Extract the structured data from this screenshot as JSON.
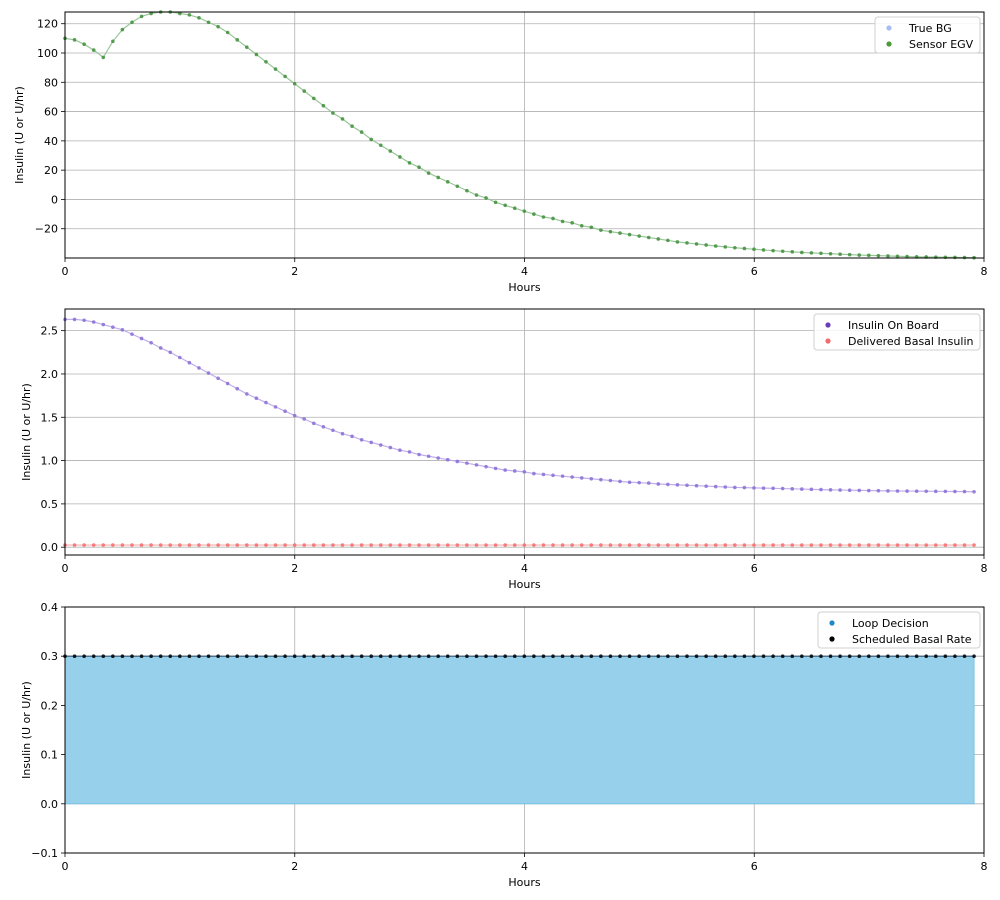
{
  "chart_data": [
    {
      "type": "scatter",
      "xlabel": "Hours",
      "ylabel": "Insulin (U or U/hr)",
      "xlim": [
        0,
        8
      ],
      "ylim": [
        -40,
        128
      ],
      "xticks": [
        0,
        2,
        4,
        6,
        8
      ],
      "yticks": [
        -20,
        0,
        20,
        40,
        60,
        80,
        100,
        120
      ],
      "grid": true,
      "legend_position": "top-right",
      "legend": [
        {
          "label": "True BG",
          "color": "#a6bff0"
        },
        {
          "label": "Sensor EGV",
          "color": "#4c9a3a"
        }
      ],
      "x_step": 0.0833,
      "series": [
        {
          "name": "Sensor EGV",
          "color": "#3f8f3a",
          "line_color": "#8fbf8f",
          "values": [
            110,
            109,
            106,
            102,
            97,
            108,
            116,
            121,
            125,
            127,
            128,
            128,
            127,
            126,
            124,
            121,
            118,
            114,
            109,
            104,
            99,
            94,
            89,
            84,
            79,
            74,
            69,
            64,
            59,
            55,
            50,
            46,
            41,
            37,
            33,
            29,
            25,
            22,
            18,
            15,
            12,
            9,
            6,
            3,
            1,
            -2,
            -4,
            -6,
            -8,
            -10,
            -12,
            -13,
            -15,
            -16,
            -18,
            -19,
            -21,
            -22,
            -23,
            -24,
            -25,
            -26,
            -27,
            -28,
            -29,
            -29.7,
            -30.4,
            -31.1,
            -31.8,
            -32.4,
            -33,
            -33.5,
            -34,
            -34.5,
            -35,
            -35.4,
            -35.8,
            -36.2,
            -36.5,
            -36.8,
            -37.1,
            -37.4,
            -37.7,
            -38,
            -38.2,
            -38.4,
            -38.6,
            -38.8,
            -39,
            -39.2,
            -39.3,
            -39.4,
            -39.5,
            -39.6,
            -39.7,
            -39.8
          ]
        }
      ]
    },
    {
      "type": "scatter",
      "xlabel": "Hours",
      "ylabel": "Insulin (U or U/hr)",
      "xlim": [
        0,
        8
      ],
      "ylim": [
        -0.09,
        2.75
      ],
      "xticks": [
        0,
        2,
        4,
        6,
        8
      ],
      "yticks": [
        0.0,
        0.5,
        1.0,
        1.5,
        2.0,
        2.5
      ],
      "grid": true,
      "legend_position": "top-right",
      "legend": [
        {
          "label": "Insulin On Board",
          "color": "#6a3fb5"
        },
        {
          "label": "Delivered Basal Insulin",
          "color": "#f46b6b"
        }
      ],
      "x_step": 0.0833,
      "series": [
        {
          "name": "Insulin On Board",
          "color": "#8a6fd6",
          "line_color": "#b9a6e8",
          "values": [
            2.63,
            2.63,
            2.62,
            2.6,
            2.57,
            2.54,
            2.51,
            2.46,
            2.41,
            2.36,
            2.3,
            2.25,
            2.19,
            2.13,
            2.07,
            2.01,
            1.95,
            1.89,
            1.83,
            1.77,
            1.72,
            1.67,
            1.62,
            1.57,
            1.52,
            1.48,
            1.43,
            1.39,
            1.35,
            1.31,
            1.28,
            1.24,
            1.21,
            1.18,
            1.15,
            1.12,
            1.1,
            1.07,
            1.05,
            1.03,
            1.01,
            0.99,
            0.97,
            0.95,
            0.93,
            0.91,
            0.89,
            0.88,
            0.87,
            0.85,
            0.84,
            0.83,
            0.82,
            0.81,
            0.8,
            0.79,
            0.78,
            0.77,
            0.76,
            0.75,
            0.745,
            0.74,
            0.73,
            0.725,
            0.72,
            0.715,
            0.71,
            0.705,
            0.7,
            0.695,
            0.69,
            0.688,
            0.685,
            0.682,
            0.68,
            0.677,
            0.674,
            0.671,
            0.668,
            0.665,
            0.662,
            0.66,
            0.658,
            0.656,
            0.654,
            0.652,
            0.65,
            0.649,
            0.648,
            0.647,
            0.646,
            0.645,
            0.644,
            0.643,
            0.642,
            0.64
          ]
        },
        {
          "name": "Delivered Basal Insulin",
          "color": "#f46b6b",
          "line_color": "#f8a4a4",
          "values": [
            0.025,
            0.025,
            0.025,
            0.025,
            0.025,
            0.025,
            0.025,
            0.025,
            0.025,
            0.025,
            0.025,
            0.025,
            0.025,
            0.025,
            0.025,
            0.025,
            0.025,
            0.025,
            0.025,
            0.025,
            0.025,
            0.025,
            0.025,
            0.025,
            0.025,
            0.025,
            0.025,
            0.025,
            0.025,
            0.025,
            0.025,
            0.025,
            0.025,
            0.025,
            0.025,
            0.025,
            0.025,
            0.025,
            0.025,
            0.025,
            0.025,
            0.025,
            0.025,
            0.025,
            0.025,
            0.025,
            0.025,
            0.025,
            0.025,
            0.025,
            0.025,
            0.025,
            0.025,
            0.025,
            0.025,
            0.025,
            0.025,
            0.025,
            0.025,
            0.025,
            0.025,
            0.025,
            0.025,
            0.025,
            0.025,
            0.025,
            0.025,
            0.025,
            0.025,
            0.025,
            0.025,
            0.025,
            0.025,
            0.025,
            0.025,
            0.025,
            0.025,
            0.025,
            0.025,
            0.025,
            0.025,
            0.025,
            0.025,
            0.025,
            0.025,
            0.025,
            0.025,
            0.025,
            0.025,
            0.025,
            0.025,
            0.025,
            0.025,
            0.025,
            0.025,
            0.025
          ]
        }
      ]
    },
    {
      "type": "area",
      "xlabel": "Hours",
      "ylabel": "Insulin (U or U/hr)",
      "xlim": [
        0,
        8
      ],
      "ylim": [
        -0.1,
        0.4
      ],
      "xticks": [
        0,
        2,
        4,
        6,
        8
      ],
      "yticks": [
        -0.1,
        0.0,
        0.1,
        0.2,
        0.3,
        0.4
      ],
      "grid": true,
      "legend_position": "top-right",
      "legend": [
        {
          "label": "Loop Decision",
          "color": "#1f86c8"
        },
        {
          "label": "Scheduled Basal Rate",
          "color": "#000000"
        }
      ],
      "x_step": 0.0833,
      "fill_color": "#96d0ea",
      "fill_edge_color": "#7cc3e6",
      "series": [
        {
          "name": "Scheduled Basal Rate",
          "color": "#000000",
          "line_color": "#2b4a6a",
          "values": [
            0.3,
            0.3,
            0.3,
            0.3,
            0.3,
            0.3,
            0.3,
            0.3,
            0.3,
            0.3,
            0.3,
            0.3,
            0.3,
            0.3,
            0.3,
            0.3,
            0.3,
            0.3,
            0.3,
            0.3,
            0.3,
            0.3,
            0.3,
            0.3,
            0.3,
            0.3,
            0.3,
            0.3,
            0.3,
            0.3,
            0.3,
            0.3,
            0.3,
            0.3,
            0.3,
            0.3,
            0.3,
            0.3,
            0.3,
            0.3,
            0.3,
            0.3,
            0.3,
            0.3,
            0.3,
            0.3,
            0.3,
            0.3,
            0.3,
            0.3,
            0.3,
            0.3,
            0.3,
            0.3,
            0.3,
            0.3,
            0.3,
            0.3,
            0.3,
            0.3,
            0.3,
            0.3,
            0.3,
            0.3,
            0.3,
            0.3,
            0.3,
            0.3,
            0.3,
            0.3,
            0.3,
            0.3,
            0.3,
            0.3,
            0.3,
            0.3,
            0.3,
            0.3,
            0.3,
            0.3,
            0.3,
            0.3,
            0.3,
            0.3,
            0.3,
            0.3,
            0.3,
            0.3,
            0.3,
            0.3,
            0.3,
            0.3,
            0.3,
            0.3,
            0.3,
            0.3
          ]
        }
      ]
    }
  ]
}
